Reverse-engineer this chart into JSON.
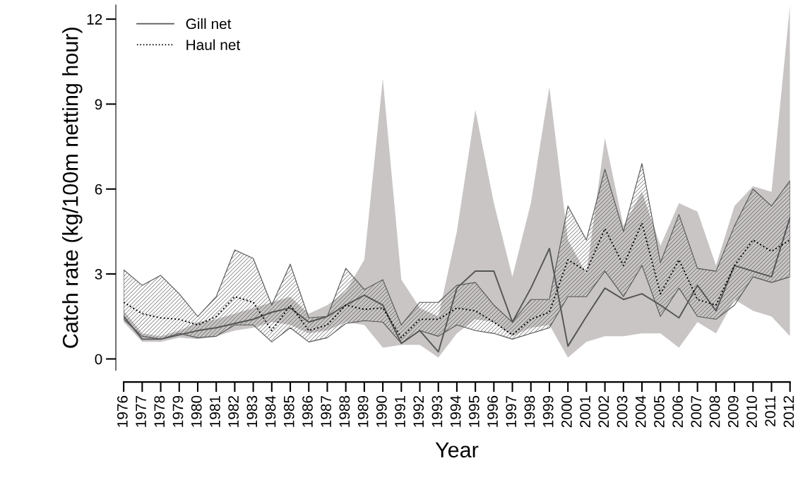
{
  "chart_data": {
    "type": "line",
    "xlabel": "Year",
    "ylabel": "Catch rate (kg/100m netting hour)",
    "x": [
      1976,
      1977,
      1978,
      1979,
      1980,
      1981,
      1982,
      1983,
      1984,
      1985,
      1986,
      1987,
      1988,
      1989,
      1990,
      1991,
      1992,
      1993,
      1994,
      1995,
      1996,
      1997,
      1998,
      1999,
      2000,
      2001,
      2002,
      2003,
      2004,
      2005,
      2006,
      2007,
      2008,
      2009,
      2010,
      2011,
      2012
    ],
    "xlim": [
      1976,
      2012
    ],
    "xticks": [
      1976,
      1977,
      1978,
      1979,
      1980,
      1981,
      1982,
      1983,
      1984,
      1985,
      1986,
      1987,
      1988,
      1989,
      1990,
      1991,
      1992,
      1993,
      1994,
      1995,
      1996,
      1997,
      1998,
      1999,
      2000,
      2001,
      2002,
      2003,
      2004,
      2005,
      2006,
      2007,
      2008,
      2009,
      2010,
      2011,
      2012
    ],
    "ylim": [
      -0.4,
      12.5
    ],
    "yticks": [
      0,
      3,
      6,
      9,
      12
    ],
    "grid": false,
    "legend": "top left",
    "series": [
      {
        "name": "Gill net",
        "color": "#555555",
        "line_style": "solid",
        "values": [
          1.5,
          0.7,
          0.7,
          0.85,
          1.0,
          1.1,
          1.25,
          1.4,
          1.65,
          1.8,
          1.3,
          1.5,
          1.9,
          2.25,
          1.9,
          0.55,
          1.0,
          0.25,
          2.5,
          3.1,
          3.1,
          1.3,
          2.5,
          3.9,
          0.45,
          1.5,
          2.5,
          2.1,
          2.3,
          1.9,
          1.45,
          2.6,
          1.7,
          3.3,
          3.1,
          2.9,
          5.0
        ],
        "lower": [
          1.3,
          0.6,
          0.6,
          0.75,
          0.7,
          0.8,
          1.0,
          1.1,
          1.3,
          1.2,
          0.9,
          1.0,
          1.3,
          1.2,
          0.4,
          0.5,
          0.5,
          0.05,
          0.9,
          1.4,
          1.3,
          0.8,
          1.1,
          1.2,
          0.05,
          0.6,
          0.8,
          0.8,
          0.9,
          0.9,
          0.4,
          1.3,
          0.9,
          2.1,
          1.7,
          1.5,
          0.8
        ],
        "upper": [
          1.7,
          0.9,
          0.8,
          1.0,
          1.3,
          1.4,
          1.6,
          1.8,
          2.0,
          2.2,
          1.6,
          1.9,
          2.4,
          3.5,
          9.9,
          2.8,
          1.8,
          1.5,
          4.5,
          8.8,
          5.5,
          2.9,
          5.5,
          9.6,
          4.2,
          3.0,
          7.8,
          4.7,
          5.9,
          4.0,
          5.5,
          5.2,
          3.3,
          5.4,
          6.1,
          5.9,
          12.5
        ]
      },
      {
        "name": "Haul net",
        "color": "#000000",
        "line_style": "dotted",
        "values": [
          2.0,
          1.6,
          1.45,
          1.4,
          1.2,
          1.5,
          2.2,
          2.0,
          1.0,
          1.9,
          1.0,
          1.2,
          1.9,
          1.75,
          1.8,
          0.75,
          1.4,
          1.4,
          1.8,
          1.7,
          1.3,
          0.85,
          1.4,
          1.65,
          3.5,
          3.1,
          4.6,
          3.3,
          4.8,
          2.3,
          3.5,
          2.1,
          1.9,
          3.3,
          4.2,
          3.8,
          4.2
        ],
        "lower": [
          1.4,
          0.8,
          0.7,
          0.9,
          0.75,
          0.8,
          1.2,
          1.2,
          0.6,
          1.1,
          0.6,
          0.75,
          1.25,
          1.35,
          1.3,
          0.55,
          1.0,
          0.8,
          1.2,
          1.0,
          0.9,
          0.7,
          0.9,
          1.1,
          2.2,
          2.2,
          3.1,
          2.2,
          3.3,
          1.5,
          2.5,
          1.5,
          1.4,
          1.9,
          2.9,
          2.7,
          2.9
        ],
        "upper": [
          3.15,
          2.6,
          2.95,
          2.3,
          1.5,
          2.2,
          3.85,
          3.55,
          1.9,
          3.35,
          1.45,
          1.5,
          3.2,
          2.45,
          2.8,
          1.2,
          2.0,
          2.0,
          2.6,
          2.7,
          1.9,
          1.3,
          2.1,
          2.1,
          5.4,
          4.2,
          6.7,
          4.5,
          6.9,
          3.4,
          5.1,
          3.2,
          3.1,
          4.7,
          6.0,
          5.4,
          6.3
        ]
      }
    ]
  }
}
